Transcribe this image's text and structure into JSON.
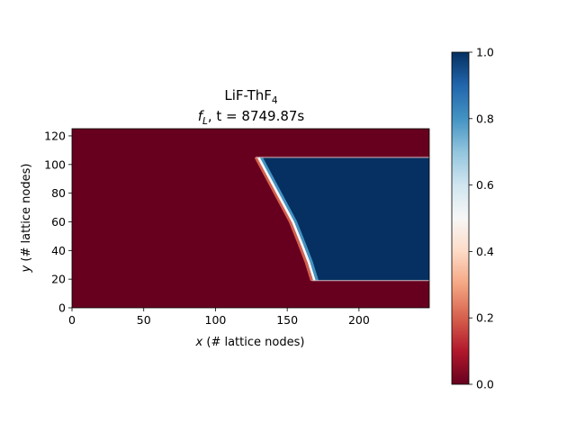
{
  "chart_data": {
    "type": "heatmap",
    "title_line1_base": "LiF-ThF",
    "title_line1_sub": "4",
    "title_line2_var": "f",
    "title_line2_sub": "L",
    "title_line2_rest": ", t = 8749.87s",
    "xlabel_var": "x",
    "xlabel_rest": " (# lattice nodes)",
    "ylabel_var": "y",
    "ylabel_rest": " (# lattice nodes)",
    "xlim": [
      0,
      249
    ],
    "ylim": [
      0,
      125
    ],
    "xticks": [
      0,
      50,
      100,
      150,
      200
    ],
    "yticks": [
      0,
      20,
      40,
      60,
      80,
      100,
      120
    ],
    "colorbar": {
      "colormap": "RdBu",
      "range": [
        0.0,
        1.0
      ],
      "ticks": [
        "0.0",
        "0.2",
        "0.4",
        "0.6",
        "0.8",
        "1.0"
      ],
      "stops": [
        "#67001f",
        "#b2182b",
        "#d6604d",
        "#f4a582",
        "#fddbc7",
        "#f7f7f7",
        "#d1e5f0",
        "#92c5de",
        "#4393c3",
        "#2166ac",
        "#053061"
      ]
    },
    "field": {
      "background_value": 0.0,
      "liquid_value": 1.0,
      "channel_y_range": [
        19,
        105
      ],
      "channel_x_end": 249,
      "front_points": [
        {
          "y": 105,
          "x": 128
        },
        {
          "y": 90,
          "x": 136
        },
        {
          "y": 75,
          "x": 144
        },
        {
          "y": 60,
          "x": 152
        },
        {
          "y": 45,
          "x": 158
        },
        {
          "y": 32,
          "x": 163
        },
        {
          "y": 19,
          "x": 167
        }
      ],
      "interface_width": 6
    }
  }
}
